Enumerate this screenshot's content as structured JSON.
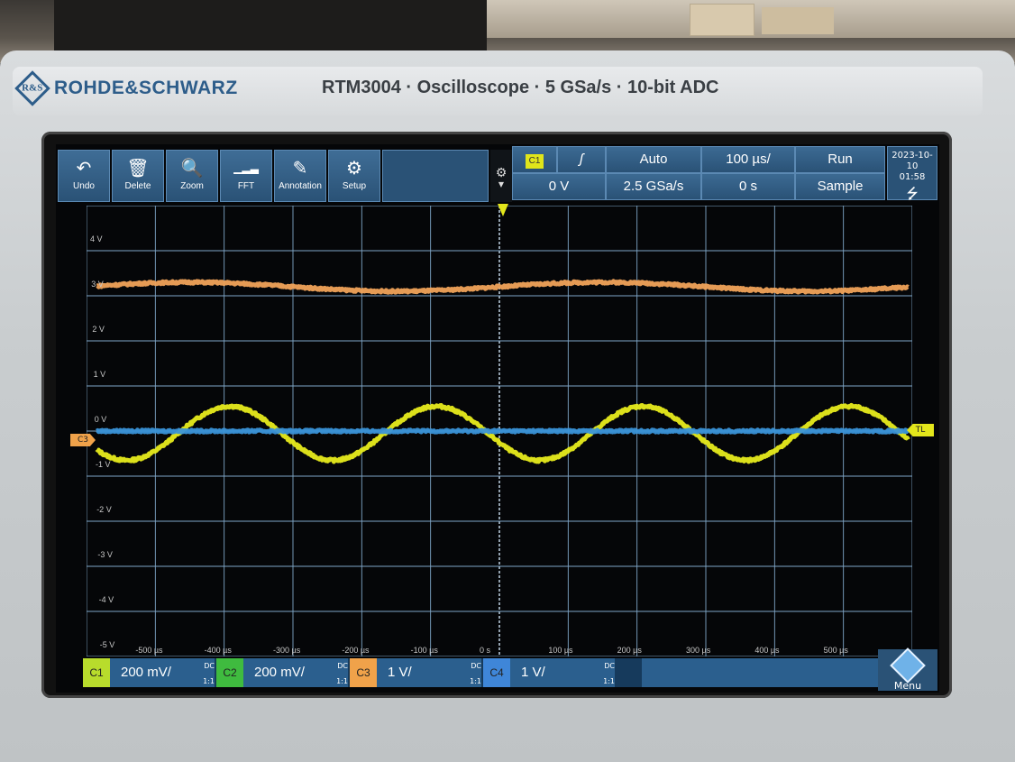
{
  "brand": {
    "logo_text": "R&S",
    "name": "ROHDE&SCHWARZ",
    "model_line": "RTM3004 · Oscilloscope · 5 GSa/s · 10-bit ADC"
  },
  "toolbar": [
    {
      "label": "Undo",
      "icon": "undo-arrow-icon",
      "glyph": "↶"
    },
    {
      "label": "Delete",
      "icon": "trash-icon",
      "glyph": "🗑"
    },
    {
      "label": "Zoom",
      "icon": "zoom-icon",
      "glyph": "🔍"
    },
    {
      "label": "FFT",
      "icon": "fft-icon",
      "glyph": "▁▂▃"
    },
    {
      "label": "Annotation",
      "icon": "pencil-icon",
      "glyph": "✎"
    },
    {
      "label": "Setup",
      "icon": "gear-icon",
      "glyph": "⚙"
    }
  ],
  "status": {
    "trigger_source": "C1",
    "trigger_slope_glyph": "ʃ",
    "trigger_mode": "Auto",
    "timebase": "100 µs/",
    "run_state": "Run",
    "trigger_level": "0 V",
    "sample_rate": "2.5 GSa/s",
    "time_offset": "0 s",
    "acq_mode": "Sample",
    "date": "2023-10-10",
    "time": "01:58",
    "usb_glyph": "⭍"
  },
  "axis": {
    "volt_labels": [
      "4 V",
      "3 V",
      "2 V",
      "1 V",
      "0 V",
      "-1 V",
      "-2 V",
      "-3 V",
      "-4 V",
      "-5 V"
    ],
    "time_labels": [
      "-500 µs",
      "-400 µs",
      "-300 µs",
      "-200 µs",
      "-100 µs",
      "0 s",
      "100 µs",
      "200 µs",
      "300 µs",
      "400 µs",
      "500 µs"
    ]
  },
  "markers": {
    "ch3_offset": "C3",
    "trigger_level_tag": "TL"
  },
  "traces": [
    {
      "name": "C1",
      "color": "#e8ec1c",
      "amplitude_v": 0.6,
      "offset_v": -0.05,
      "period_us": 300,
      "phase_deg": 200,
      "noise": 0.06
    },
    {
      "name": "C2",
      "color": "#f1a35a",
      "amplitude_v": 0.1,
      "offset_v": 3.2,
      "period_us": 600,
      "phase_deg": 0,
      "noise": 0.05
    },
    {
      "name": "C4",
      "color": "#3a93d9",
      "amplitude_v": 0.0,
      "offset_v": 0.0,
      "period_us": 300,
      "phase_deg": 0,
      "noise": 0.05
    }
  ],
  "channels": [
    {
      "id": "C1",
      "scale": "200 mV/",
      "coupling": "DC",
      "ratio": "1:1",
      "color": "#b8dc2c"
    },
    {
      "id": "C2",
      "scale": "200 mV/",
      "coupling": "DC",
      "ratio": "1:1",
      "color": "#3fbb3f"
    },
    {
      "id": "C3",
      "scale": "1 V/",
      "coupling": "DC",
      "ratio": "1:1",
      "color": "#f0a24a"
    },
    {
      "id": "C4",
      "scale": "1 V/",
      "coupling": "DC",
      "ratio": "1:1",
      "color": "#3f86d8"
    }
  ],
  "menu": {
    "label": "Menu"
  }
}
